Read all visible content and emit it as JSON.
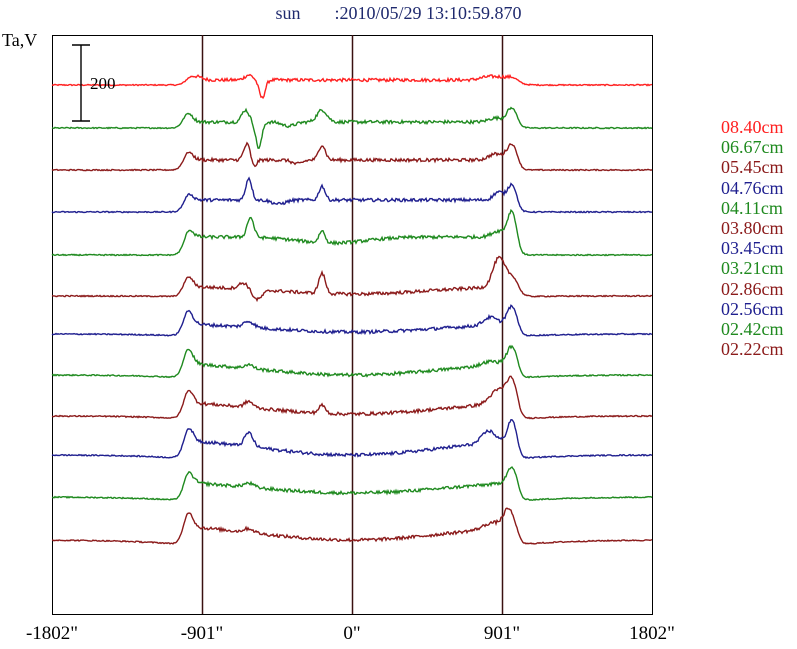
{
  "title": {
    "object": "sun",
    "timestamp": ":2010/05/29 13:10:59.870"
  },
  "chart_data": {
    "type": "line",
    "ylabel": "Ta,V",
    "xlim": [
      -1802,
      1802
    ],
    "x_tick_labels": [
      "-1802\"",
      "-901\"",
      "0\"",
      "901\"",
      "1802\""
    ],
    "x_tick_values": [
      -1802,
      -901,
      0,
      901,
      1802
    ],
    "vertical_lines": [
      -901,
      0,
      901
    ],
    "scale_bar": {
      "label": "200",
      "value": 200
    },
    "series": [
      {
        "name": "08.40cm",
        "color": "#ff2020",
        "offset": 85,
        "style": "red"
      },
      {
        "name": "06.67cm",
        "color": "#1f8a1f",
        "offset": 128,
        "style": "g1"
      },
      {
        "name": "05.45cm",
        "color": "#8b1a1a",
        "offset": 170,
        "style": "m1"
      },
      {
        "name": "04.76cm",
        "color": "#1f1f8f",
        "offset": 212,
        "style": "b1"
      },
      {
        "name": "04.11cm",
        "color": "#1f8a1f",
        "offset": 255,
        "style": "g2"
      },
      {
        "name": "03.80cm",
        "color": "#8b1a1a",
        "offset": 296,
        "style": "m2"
      },
      {
        "name": "03.45cm",
        "color": "#1f1f8f",
        "offset": 334,
        "style": "b2"
      },
      {
        "name": "03.21cm",
        "color": "#1f8a1f",
        "offset": 375,
        "style": "g3"
      },
      {
        "name": "02.86cm",
        "color": "#8b1a1a",
        "offset": 416,
        "style": "m3"
      },
      {
        "name": "02.56cm",
        "color": "#1f1f8f",
        "offset": 455,
        "style": "b3"
      },
      {
        "name": "02.42cm",
        "color": "#1f8a1f",
        "offset": 497,
        "style": "g4"
      },
      {
        "name": "02.22cm",
        "color": "#8b1a1a",
        "offset": 540,
        "style": "m4"
      }
    ]
  }
}
